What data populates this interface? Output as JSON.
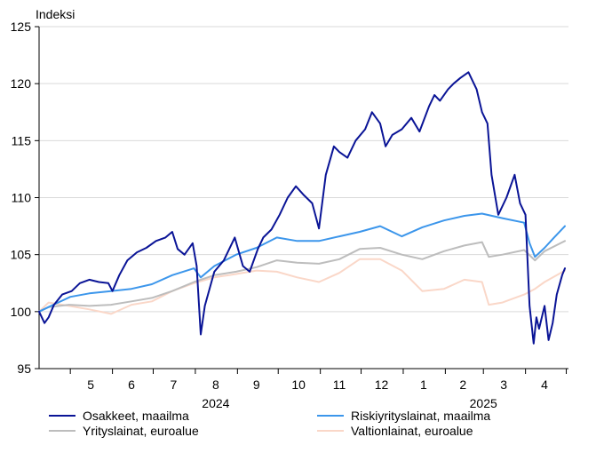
{
  "chart_data": {
    "type": "line",
    "ylabel": "Indeksi",
    "ylim": [
      95,
      125
    ],
    "y_ticks": [
      95,
      100,
      105,
      110,
      115,
      120,
      125
    ],
    "x_range": [
      "2024-04-08",
      "2025-04-30"
    ],
    "month_labels": [
      {
        "label": "5",
        "date": "2024-05-16"
      },
      {
        "label": "6",
        "date": "2024-06-15"
      },
      {
        "label": "7",
        "date": "2024-07-16"
      },
      {
        "label": "8",
        "date": "2024-08-16"
      },
      {
        "label": "9",
        "date": "2024-09-15"
      },
      {
        "label": "10",
        "date": "2024-10-16"
      },
      {
        "label": "11",
        "date": "2024-11-15"
      },
      {
        "label": "12",
        "date": "2024-12-16"
      },
      {
        "label": "1",
        "date": "2025-01-16"
      },
      {
        "label": "2",
        "date": "2025-02-14"
      },
      {
        "label": "3",
        "date": "2025-03-16"
      },
      {
        "label": "4",
        "date": "2025-04-15"
      }
    ],
    "month_boundaries": [
      "2024-05-01",
      "2024-06-01",
      "2024-07-01",
      "2024-08-01",
      "2024-09-01",
      "2024-10-01",
      "2024-11-01",
      "2024-12-01",
      "2025-01-01",
      "2025-02-01",
      "2025-03-01",
      "2025-04-01",
      "2025-05-01"
    ],
    "year_labels": [
      {
        "label": "2024",
        "date": "2024-08-16"
      },
      {
        "label": "2025",
        "date": "2025-03-01"
      }
    ],
    "grid": true,
    "legend_position": "bottom",
    "series": [
      {
        "name": "Osakkeet, maailma",
        "color": "#0a1496",
        "points": [
          [
            "2024-04-08",
            100.0
          ],
          [
            "2024-04-12",
            99.0
          ],
          [
            "2024-04-15",
            99.5
          ],
          [
            "2024-04-19",
            100.6
          ],
          [
            "2024-04-25",
            101.5
          ],
          [
            "2024-05-02",
            101.8
          ],
          [
            "2024-05-08",
            102.5
          ],
          [
            "2024-05-15",
            102.8
          ],
          [
            "2024-05-22",
            102.6
          ],
          [
            "2024-05-29",
            102.5
          ],
          [
            "2024-06-01",
            101.8
          ],
          [
            "2024-06-06",
            103.2
          ],
          [
            "2024-06-12",
            104.5
          ],
          [
            "2024-06-19",
            105.2
          ],
          [
            "2024-06-26",
            105.6
          ],
          [
            "2024-07-03",
            106.2
          ],
          [
            "2024-07-10",
            106.5
          ],
          [
            "2024-07-15",
            107.0
          ],
          [
            "2024-07-19",
            105.5
          ],
          [
            "2024-07-24",
            105.0
          ],
          [
            "2024-07-30",
            106.0
          ],
          [
            "2024-08-02",
            104.0
          ],
          [
            "2024-08-05",
            98.0
          ],
          [
            "2024-08-08",
            100.5
          ],
          [
            "2024-08-15",
            103.5
          ],
          [
            "2024-08-22",
            104.5
          ],
          [
            "2024-08-30",
            106.5
          ],
          [
            "2024-09-05",
            104.0
          ],
          [
            "2024-09-10",
            103.5
          ],
          [
            "2024-09-16",
            105.5
          ],
          [
            "2024-09-20",
            106.5
          ],
          [
            "2024-09-26",
            107.2
          ],
          [
            "2024-10-02",
            108.5
          ],
          [
            "2024-10-08",
            110.0
          ],
          [
            "2024-10-14",
            111.0
          ],
          [
            "2024-10-20",
            110.2
          ],
          [
            "2024-10-26",
            109.5
          ],
          [
            "2024-10-31",
            107.3
          ],
          [
            "2024-11-05",
            112.0
          ],
          [
            "2024-11-11",
            114.5
          ],
          [
            "2024-11-15",
            114.0
          ],
          [
            "2024-11-21",
            113.5
          ],
          [
            "2024-11-27",
            115.0
          ],
          [
            "2024-12-04",
            116.0
          ],
          [
            "2024-12-09",
            117.5
          ],
          [
            "2024-12-15",
            116.5
          ],
          [
            "2024-12-19",
            114.5
          ],
          [
            "2024-12-24",
            115.5
          ],
          [
            "2024-12-31",
            116.0
          ],
          [
            "2025-01-07",
            117.0
          ],
          [
            "2025-01-13",
            115.8
          ],
          [
            "2025-01-20",
            118.0
          ],
          [
            "2025-01-24",
            119.0
          ],
          [
            "2025-01-28",
            118.5
          ],
          [
            "2025-02-03",
            119.5
          ],
          [
            "2025-02-07",
            120.0
          ],
          [
            "2025-02-12",
            120.5
          ],
          [
            "2025-02-18",
            121.0
          ],
          [
            "2025-02-24",
            119.5
          ],
          [
            "2025-02-28",
            117.5
          ],
          [
            "2025-03-04",
            116.5
          ],
          [
            "2025-03-07",
            112.0
          ],
          [
            "2025-03-12",
            108.5
          ],
          [
            "2025-03-18",
            110.0
          ],
          [
            "2025-03-24",
            112.0
          ],
          [
            "2025-03-28",
            109.5
          ],
          [
            "2025-04-01",
            108.5
          ],
          [
            "2025-04-04",
            100.5
          ],
          [
            "2025-04-07",
            97.2
          ],
          [
            "2025-04-09",
            99.5
          ],
          [
            "2025-04-11",
            98.5
          ],
          [
            "2025-04-15",
            100.5
          ],
          [
            "2025-04-18",
            97.5
          ],
          [
            "2025-04-21",
            99.0
          ],
          [
            "2025-04-24",
            101.5
          ],
          [
            "2025-04-28",
            103.2
          ],
          [
            "2025-04-30",
            103.8
          ]
        ]
      },
      {
        "name": "Riskiyrityslainat, maailma",
        "color": "#3c96eb",
        "points": [
          [
            "2024-04-08",
            100.0
          ],
          [
            "2024-04-15",
            100.4
          ],
          [
            "2024-04-22",
            100.8
          ],
          [
            "2024-05-01",
            101.3
          ],
          [
            "2024-05-15",
            101.6
          ],
          [
            "2024-05-31",
            101.8
          ],
          [
            "2024-06-15",
            102.0
          ],
          [
            "2024-06-30",
            102.4
          ],
          [
            "2024-07-15",
            103.2
          ],
          [
            "2024-07-31",
            103.8
          ],
          [
            "2024-08-05",
            103.0
          ],
          [
            "2024-08-15",
            104.0
          ],
          [
            "2024-08-31",
            105.0
          ],
          [
            "2024-09-15",
            105.6
          ],
          [
            "2024-09-30",
            106.5
          ],
          [
            "2024-10-15",
            106.2
          ],
          [
            "2024-10-31",
            106.2
          ],
          [
            "2024-11-15",
            106.6
          ],
          [
            "2024-11-30",
            107.0
          ],
          [
            "2024-12-15",
            107.5
          ],
          [
            "2024-12-31",
            106.6
          ],
          [
            "2025-01-15",
            107.4
          ],
          [
            "2025-01-31",
            108.0
          ],
          [
            "2025-02-15",
            108.4
          ],
          [
            "2025-02-28",
            108.6
          ],
          [
            "2025-03-15",
            108.2
          ],
          [
            "2025-03-31",
            107.8
          ],
          [
            "2025-04-04",
            106.0
          ],
          [
            "2025-04-08",
            104.8
          ],
          [
            "2025-04-15",
            105.6
          ],
          [
            "2025-04-22",
            106.5
          ],
          [
            "2025-04-30",
            107.5
          ]
        ]
      },
      {
        "name": "Yrityslainat, euroalue",
        "color": "#bdbdbd",
        "points": [
          [
            "2024-04-08",
            100.0
          ],
          [
            "2024-04-15",
            100.4
          ],
          [
            "2024-04-30",
            100.6
          ],
          [
            "2024-05-15",
            100.5
          ],
          [
            "2024-05-31",
            100.6
          ],
          [
            "2024-06-15",
            100.9
          ],
          [
            "2024-06-30",
            101.2
          ],
          [
            "2024-07-15",
            101.8
          ],
          [
            "2024-07-31",
            102.6
          ],
          [
            "2024-08-15",
            103.2
          ],
          [
            "2024-08-31",
            103.5
          ],
          [
            "2024-09-15",
            103.9
          ],
          [
            "2024-09-30",
            104.5
          ],
          [
            "2024-10-15",
            104.3
          ],
          [
            "2024-10-31",
            104.2
          ],
          [
            "2024-11-15",
            104.6
          ],
          [
            "2024-11-30",
            105.5
          ],
          [
            "2024-12-15",
            105.6
          ],
          [
            "2024-12-31",
            105.0
          ],
          [
            "2025-01-15",
            104.6
          ],
          [
            "2025-01-31",
            105.3
          ],
          [
            "2025-02-15",
            105.8
          ],
          [
            "2025-02-28",
            106.1
          ],
          [
            "2025-03-05",
            104.8
          ],
          [
            "2025-03-15",
            105.0
          ],
          [
            "2025-03-31",
            105.4
          ],
          [
            "2025-04-08",
            104.5
          ],
          [
            "2025-04-15",
            105.3
          ],
          [
            "2025-04-30",
            106.2
          ]
        ]
      },
      {
        "name": "Valtionlainat, euroalue",
        "color": "#fad7c8",
        "points": [
          [
            "2024-04-08",
            100.0
          ],
          [
            "2024-04-15",
            100.8
          ],
          [
            "2024-04-30",
            100.5
          ],
          [
            "2024-05-15",
            100.2
          ],
          [
            "2024-05-31",
            99.8
          ],
          [
            "2024-06-15",
            100.6
          ],
          [
            "2024-06-30",
            100.9
          ],
          [
            "2024-07-15",
            101.8
          ],
          [
            "2024-07-31",
            102.5
          ],
          [
            "2024-08-15",
            103.0
          ],
          [
            "2024-08-31",
            103.3
          ],
          [
            "2024-09-15",
            103.6
          ],
          [
            "2024-09-30",
            103.5
          ],
          [
            "2024-10-15",
            103.0
          ],
          [
            "2024-10-31",
            102.6
          ],
          [
            "2024-11-15",
            103.4
          ],
          [
            "2024-11-30",
            104.6
          ],
          [
            "2024-12-15",
            104.6
          ],
          [
            "2024-12-31",
            103.6
          ],
          [
            "2025-01-15",
            101.8
          ],
          [
            "2025-01-31",
            102.0
          ],
          [
            "2025-02-15",
            102.8
          ],
          [
            "2025-02-28",
            102.6
          ],
          [
            "2025-03-05",
            100.6
          ],
          [
            "2025-03-15",
            100.8
          ],
          [
            "2025-03-31",
            101.5
          ],
          [
            "2025-04-08",
            102.0
          ],
          [
            "2025-04-15",
            102.6
          ],
          [
            "2025-04-30",
            103.6
          ]
        ]
      }
    ]
  }
}
